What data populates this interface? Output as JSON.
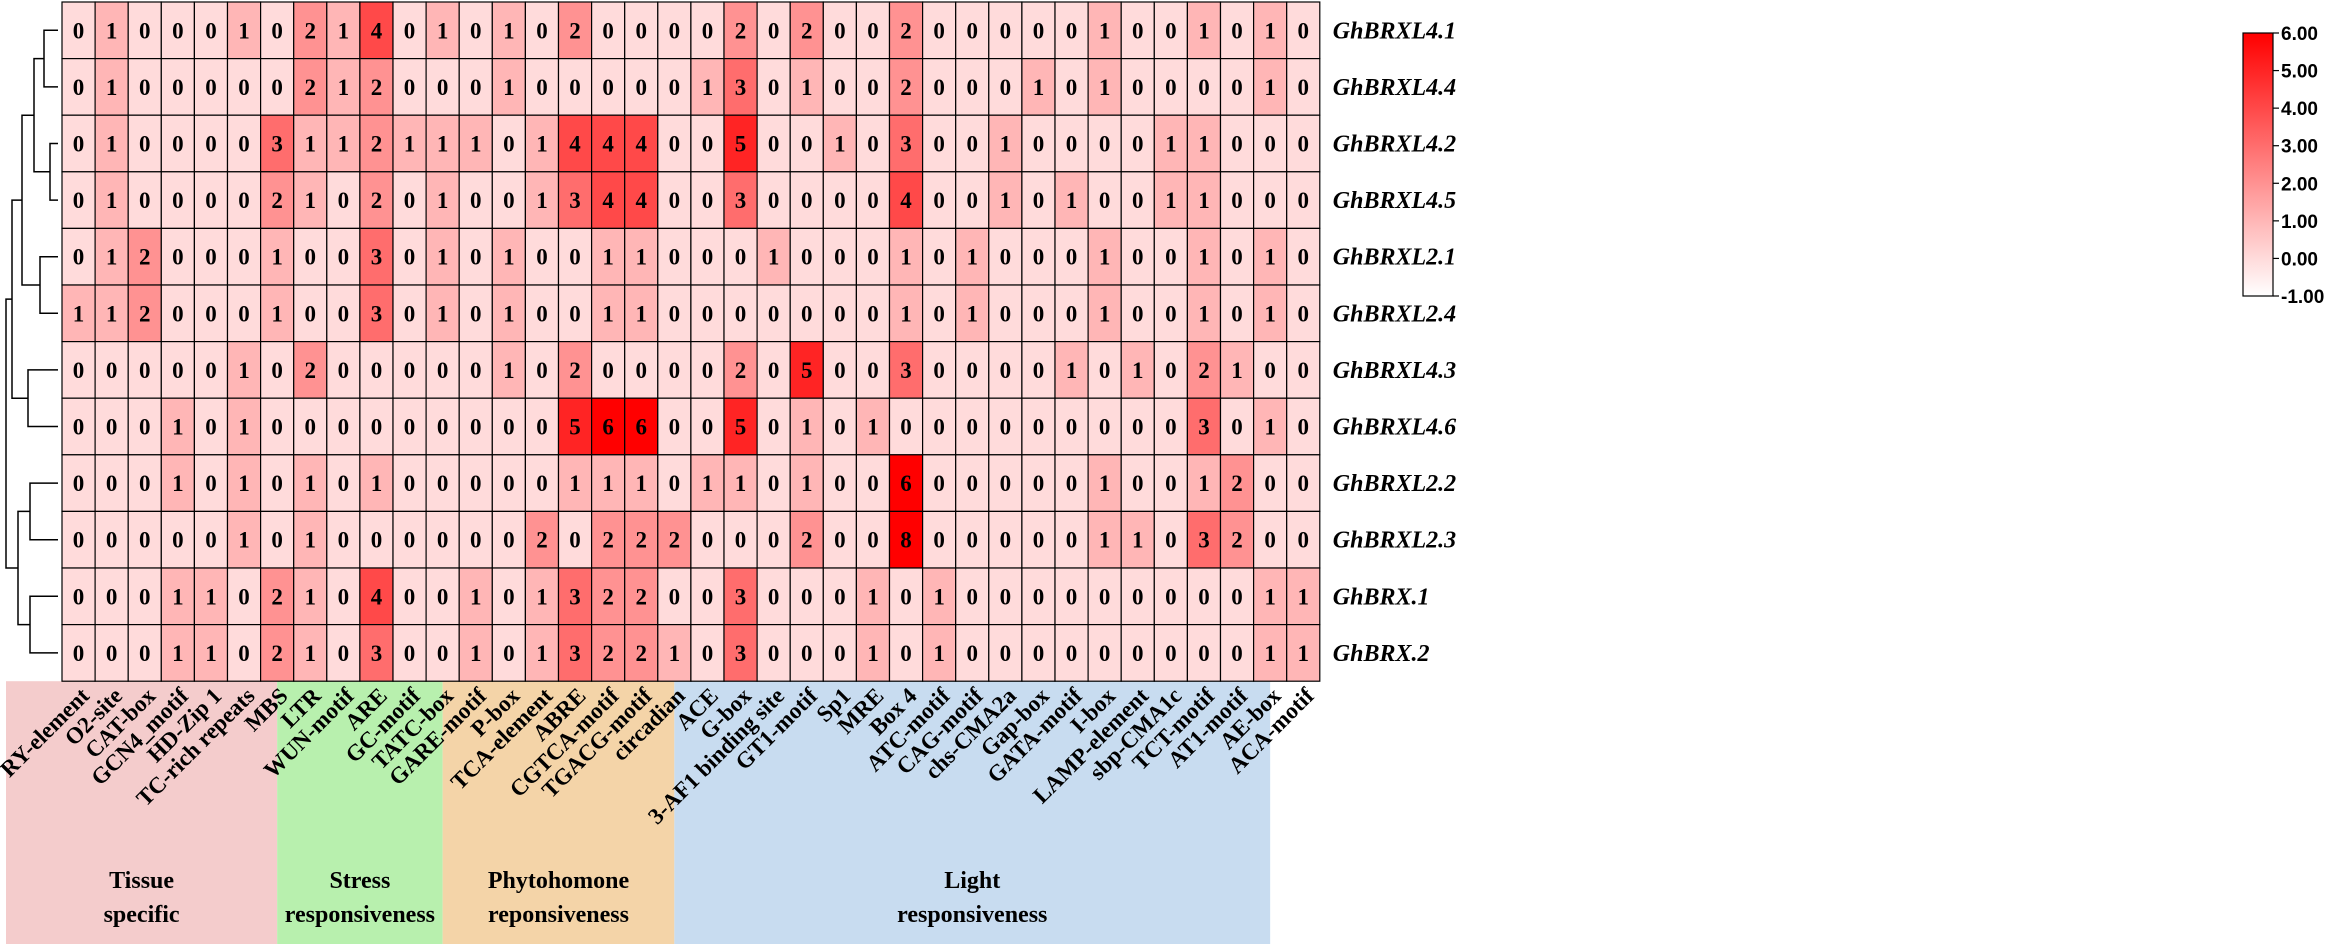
{
  "chart_data": {
    "type": "heatmap",
    "rows": [
      "GhBRXL4.1",
      "GhBRXL4.4",
      "GhBRXL4.2",
      "GhBRXL4.5",
      "GhBRXL2.1",
      "GhBRXL2.4",
      "GhBRXL4.3",
      "GhBRXL4.6",
      "GhBRXL2.2",
      "GhBRXL2.3",
      "GhBRX.1",
      "GhBRX.2"
    ],
    "columns": [
      "RY-element",
      "O2-site",
      "CAT-box",
      "GCN4_motif",
      "HD-Zip 1",
      "TC-rich repeats",
      "MBS",
      "LTR",
      "WUN-motif",
      "ARE",
      "GC-motif",
      "TATC-box",
      "GARE-motif",
      "P-box",
      "TCA-element",
      "ABRE",
      "CGTCA-motif",
      "TGACG-motif",
      "circadian",
      "ACE",
      "G-box",
      "3-AF1 binding site",
      "GT1-motif",
      "Sp1",
      "MRE",
      "Box 4",
      "ATC-motif",
      "CAG-motif",
      "chs-CMA2a",
      "Gap-box",
      "GATA-motif",
      "I-box",
      "LAMP-element",
      "sbp-CMA1c",
      "TCT-motif",
      "AT1-motif",
      "AE-box",
      "ACA-motif"
    ],
    "values": [
      [
        0,
        1,
        0,
        0,
        0,
        1,
        0,
        2,
        1,
        4,
        0,
        1,
        0,
        1,
        0,
        2,
        0,
        0,
        0,
        0,
        2,
        0,
        2,
        0,
        0,
        2,
        0,
        0,
        0,
        0,
        0,
        1,
        0,
        0,
        1,
        0,
        1,
        0
      ],
      [
        0,
        1,
        0,
        0,
        0,
        0,
        0,
        2,
        1,
        2,
        0,
        0,
        0,
        1,
        0,
        0,
        0,
        0,
        0,
        1,
        3,
        0,
        1,
        0,
        0,
        2,
        0,
        0,
        0,
        1,
        0,
        1,
        0,
        0,
        0,
        0,
        1,
        0
      ],
      [
        0,
        1,
        0,
        0,
        0,
        0,
        3,
        1,
        1,
        2,
        1,
        1,
        1,
        0,
        1,
        4,
        4,
        4,
        0,
        0,
        5,
        0,
        0,
        1,
        0,
        3,
        0,
        0,
        1,
        0,
        0,
        0,
        0,
        1,
        1,
        0,
        0,
        0
      ],
      [
        0,
        1,
        0,
        0,
        0,
        0,
        2,
        1,
        0,
        2,
        0,
        1,
        0,
        0,
        1,
        3,
        4,
        4,
        0,
        0,
        3,
        0,
        0,
        0,
        0,
        4,
        0,
        0,
        1,
        0,
        1,
        0,
        0,
        1,
        1,
        0,
        0,
        0
      ],
      [
        0,
        1,
        2,
        0,
        0,
        0,
        1,
        0,
        0,
        3,
        0,
        1,
        0,
        1,
        0,
        0,
        1,
        1,
        0,
        0,
        0,
        1,
        0,
        0,
        0,
        1,
        0,
        1,
        0,
        0,
        0,
        1,
        0,
        0,
        1,
        0,
        1,
        0
      ],
      [
        1,
        1,
        2,
        0,
        0,
        0,
        1,
        0,
        0,
        3,
        0,
        1,
        0,
        1,
        0,
        0,
        1,
        1,
        0,
        0,
        0,
        0,
        0,
        0,
        0,
        1,
        0,
        1,
        0,
        0,
        0,
        1,
        0,
        0,
        1,
        0,
        1,
        0
      ],
      [
        0,
        0,
        0,
        0,
        0,
        1,
        0,
        2,
        0,
        0,
        0,
        0,
        0,
        1,
        0,
        2,
        0,
        0,
        0,
        0,
        2,
        0,
        5,
        0,
        0,
        3,
        0,
        0,
        0,
        0,
        1,
        0,
        1,
        0,
        2,
        1,
        0,
        0
      ],
      [
        0,
        0,
        0,
        1,
        0,
        1,
        0,
        0,
        0,
        0,
        0,
        0,
        0,
        0,
        0,
        5,
        6,
        6,
        0,
        0,
        5,
        0,
        1,
        0,
        1,
        0,
        0,
        0,
        0,
        0,
        0,
        0,
        0,
        0,
        3,
        0,
        1,
        0
      ],
      [
        0,
        0,
        0,
        1,
        0,
        1,
        0,
        1,
        0,
        1,
        0,
        0,
        0,
        0,
        0,
        1,
        1,
        1,
        0,
        1,
        1,
        0,
        1,
        0,
        0,
        6,
        0,
        0,
        0,
        0,
        0,
        1,
        0,
        0,
        1,
        2,
        0,
        0
      ],
      [
        0,
        0,
        0,
        0,
        0,
        1,
        0,
        1,
        0,
        0,
        0,
        0,
        0,
        0,
        2,
        0,
        2,
        2,
        2,
        0,
        0,
        0,
        2,
        0,
        0,
        8,
        0,
        0,
        0,
        0,
        0,
        1,
        1,
        0,
        3,
        2,
        0,
        0
      ],
      [
        0,
        0,
        0,
        1,
        1,
        0,
        2,
        1,
        0,
        4,
        0,
        0,
        1,
        0,
        1,
        3,
        2,
        2,
        0,
        0,
        3,
        0,
        0,
        0,
        1,
        0,
        1,
        0,
        0,
        0,
        0,
        0,
        0,
        0,
        0,
        0,
        1,
        1
      ],
      [
        0,
        0,
        0,
        1,
        1,
        0,
        2,
        1,
        0,
        3,
        0,
        0,
        1,
        0,
        1,
        3,
        2,
        2,
        1,
        0,
        3,
        0,
        0,
        0,
        1,
        0,
        1,
        0,
        0,
        0,
        0,
        0,
        0,
        0,
        0,
        0,
        1,
        1
      ]
    ],
    "color_scale": {
      "min": -1.0,
      "max": 6.0,
      "low_color": "#ffffff",
      "high_color": "#ff0000",
      "ticks": [
        "6.00",
        "5.00",
        "4.00",
        "3.00",
        "2.00",
        "1.00",
        "0.00",
        "-1.00"
      ]
    },
    "groups": [
      {
        "lines": [
          "Tissue",
          "specific"
        ],
        "start": 0,
        "end": 5,
        "color": "#f4cccc"
      },
      {
        "lines": [
          "Stress",
          "responsiveness"
        ],
        "start": 6,
        "end": 10,
        "color": "#b8f0ae"
      },
      {
        "lines": [
          "Phytohomone",
          "reponsiveness"
        ],
        "start": 11,
        "end": 17,
        "color": "#f4d4a8"
      },
      {
        "lines": [
          "Light",
          "responsiveness"
        ],
        "start": 18,
        "end": 37,
        "color": "#c8dcf0"
      }
    ],
    "dendrogram": true
  }
}
